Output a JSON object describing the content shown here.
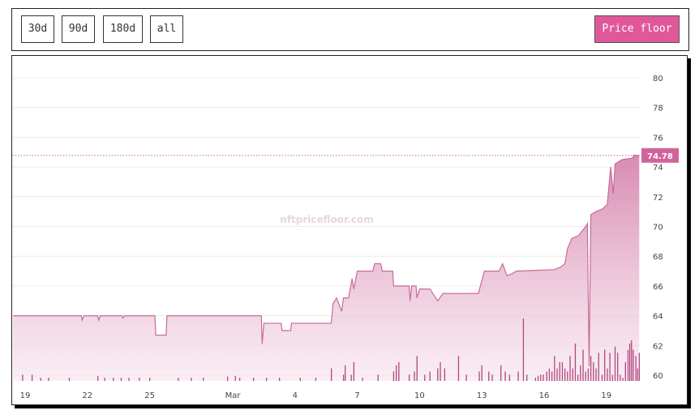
{
  "toolbar": {
    "ranges": [
      {
        "label": "30d",
        "active": true
      },
      {
        "label": "90d",
        "active": false
      },
      {
        "label": "180d",
        "active": false
      },
      {
        "label": "all",
        "active": false
      }
    ],
    "metric_button": "Price floor"
  },
  "colors": {
    "accent": "#e0589a",
    "line": "#c76b9a",
    "volume": "#b0487f",
    "label_bg": "#d0649a"
  },
  "chart_data": {
    "type": "area",
    "watermark": "nftpricefloor.com",
    "ylim": [
      60,
      80
    ],
    "yticks": [
      "60",
      "62",
      "64",
      "66",
      "68",
      "70",
      "72",
      "74",
      "76",
      "78",
      "80"
    ],
    "xticks": [
      {
        "date": "02-19 00:00",
        "label": "19"
      },
      {
        "date": "02-22 00:00",
        "label": "22"
      },
      {
        "date": "02-25 00:00",
        "label": "25"
      },
      {
        "date": "03-01 00:00",
        "label": "Mar"
      },
      {
        "date": "03-04 00:00",
        "label": "4"
      },
      {
        "date": "03-07 00:00",
        "label": "7"
      },
      {
        "date": "03-10 00:00",
        "label": "10"
      },
      {
        "date": "03-13 00:00",
        "label": "13"
      },
      {
        "date": "03-16 00:00",
        "label": "16"
      },
      {
        "date": "03-19 00:00",
        "label": "19"
      }
    ],
    "grid": true,
    "last_value_label": "74.78",
    "last_value": 74.78,
    "price": [
      [
        "02-18 10:00",
        64.0
      ],
      [
        "02-21 17:00",
        64.0
      ],
      [
        "02-21 18:00",
        63.7
      ],
      [
        "02-21 20:00",
        64.0
      ],
      [
        "02-22 12:00",
        64.0
      ],
      [
        "02-22 13:00",
        63.7
      ],
      [
        "02-22 15:00",
        64.0
      ],
      [
        "02-23 16:00",
        64.0
      ],
      [
        "02-23 17:00",
        63.85
      ],
      [
        "02-23 19:00",
        64.0
      ],
      [
        "02-25 06:00",
        64.0
      ],
      [
        "02-25 07:00",
        62.7
      ],
      [
        "02-25 19:00",
        62.7
      ],
      [
        "02-25 20:00",
        64.0
      ],
      [
        "03-02 09:00",
        64.0
      ],
      [
        "03-02 10:00",
        62.1
      ],
      [
        "03-02 12:00",
        63.5
      ],
      [
        "03-03 08:00",
        63.5
      ],
      [
        "03-03 09:00",
        63.0
      ],
      [
        "03-03 19:00",
        63.0
      ],
      [
        "03-03 20:00",
        63.5
      ],
      [
        "03-05 18:00",
        63.5
      ],
      [
        "03-05 20:00",
        64.8
      ],
      [
        "03-06 00:00",
        65.2
      ],
      [
        "03-06 06:00",
        64.3
      ],
      [
        "03-06 08:00",
        65.2
      ],
      [
        "03-06 14:00",
        65.2
      ],
      [
        "03-06 18:00",
        66.5
      ],
      [
        "03-06 20:00",
        65.8
      ],
      [
        "03-07 00:00",
        67.0
      ],
      [
        "03-07 18:00",
        67.0
      ],
      [
        "03-07 20:00",
        67.5
      ],
      [
        "03-08 03:00",
        67.5
      ],
      [
        "03-08 05:00",
        67.0
      ],
      [
        "03-08 17:00",
        67.0
      ],
      [
        "03-08 18:00",
        66.0
      ],
      [
        "03-09 12:00",
        66.0
      ],
      [
        "03-09 13:00",
        65.0
      ],
      [
        "03-09 15:00",
        66.0
      ],
      [
        "03-09 20:00",
        66.0
      ],
      [
        "03-09 21:00",
        65.2
      ],
      [
        "03-10 00:00",
        65.8
      ],
      [
        "03-10 12:00",
        65.8
      ],
      [
        "03-10 21:00",
        65.0
      ],
      [
        "03-11 03:00",
        65.5
      ],
      [
        "03-12 20:00",
        65.5
      ],
      [
        "03-13 03:00",
        67.0
      ],
      [
        "03-13 20:00",
        67.0
      ],
      [
        "03-14 00:00",
        67.5
      ],
      [
        "03-14 05:00",
        66.7
      ],
      [
        "03-14 10:00",
        66.8
      ],
      [
        "03-14 16:00",
        67.0
      ],
      [
        "03-16 12:00",
        67.1
      ],
      [
        "03-16 20:00",
        67.3
      ],
      [
        "03-17 00:00",
        67.5
      ],
      [
        "03-17 03:00",
        68.5
      ],
      [
        "03-17 08:00",
        69.2
      ],
      [
        "03-17 16:00",
        69.4
      ],
      [
        "03-18 00:00",
        70.0
      ],
      [
        "03-18 02:00",
        70.2
      ],
      [
        "03-18 04:00",
        60.6
      ],
      [
        "03-18 06:00",
        70.8
      ],
      [
        "03-18 12:00",
        71.0
      ],
      [
        "03-18 20:00",
        71.2
      ],
      [
        "03-19 01:00",
        71.5
      ],
      [
        "03-19 05:00",
        74.0
      ],
      [
        "03-19 08:00",
        72.2
      ],
      [
        "03-19 10:00",
        74.2
      ],
      [
        "03-19 18:00",
        74.5
      ],
      [
        "03-20 06:00",
        74.6
      ],
      [
        "03-20 08:00",
        74.8
      ],
      [
        "03-20 14:00",
        74.78
      ]
    ],
    "volume": [
      [
        "02-18 21:00",
        1
      ],
      [
        "02-19 08:00",
        1
      ],
      [
        "02-19 18:00",
        0.5
      ],
      [
        "02-20 03:00",
        0.5
      ],
      [
        "02-21 03:00",
        0.5
      ],
      [
        "02-22 12:00",
        0.8
      ],
      [
        "02-22 20:00",
        0.5
      ],
      [
        "02-23 06:00",
        0.5
      ],
      [
        "02-23 15:00",
        0.5
      ],
      [
        "02-24 00:00",
        0.5
      ],
      [
        "02-24 12:00",
        0.5
      ],
      [
        "02-25 00:00",
        0.5
      ],
      [
        "02-26 09:00",
        0.5
      ],
      [
        "02-27 00:00",
        0.5
      ],
      [
        "02-27 14:00",
        0.5
      ],
      [
        "02-28 18:00",
        0.7
      ],
      [
        "03-01 03:00",
        0.8
      ],
      [
        "03-01 08:00",
        0.5
      ],
      [
        "03-02 00:00",
        0.5
      ],
      [
        "03-02 15:00",
        0.5
      ],
      [
        "03-03 06:00",
        0.5
      ],
      [
        "03-04 06:00",
        0.5
      ],
      [
        "03-05 00:00",
        0.5
      ],
      [
        "03-05 18:00",
        2
      ],
      [
        "03-06 08:00",
        1
      ],
      [
        "03-06 10:00",
        2.5
      ],
      [
        "03-06 17:00",
        1
      ],
      [
        "03-06 20:00",
        3
      ],
      [
        "03-07 06:00",
        0.5
      ],
      [
        "03-08 00:00",
        1
      ],
      [
        "03-08 18:00",
        1.5
      ],
      [
        "03-08 21:00",
        2.5
      ],
      [
        "03-09 00:00",
        3
      ],
      [
        "03-09 12:00",
        1
      ],
      [
        "03-09 18:00",
        1.5
      ],
      [
        "03-09 21:00",
        4
      ],
      [
        "03-10 06:00",
        1
      ],
      [
        "03-10 12:00",
        1.5
      ],
      [
        "03-10 21:00",
        2
      ],
      [
        "03-11 00:00",
        3
      ],
      [
        "03-11 05:00",
        2
      ],
      [
        "03-11 21:00",
        4
      ],
      [
        "03-12 06:00",
        1
      ],
      [
        "03-12 21:00",
        1.5
      ],
      [
        "03-13 00:00",
        2.5
      ],
      [
        "03-13 08:00",
        1.5
      ],
      [
        "03-13 12:00",
        1
      ],
      [
        "03-13 22:00",
        2.5
      ],
      [
        "03-14 03:00",
        1.5
      ],
      [
        "03-14 08:00",
        1
      ],
      [
        "03-14 18:00",
        1.5
      ],
      [
        "03-15 00:00",
        10
      ],
      [
        "03-15 04:00",
        1
      ],
      [
        "03-15 14:00",
        0.5
      ],
      [
        "03-15 17:00",
        0.8
      ],
      [
        "03-15 20:00",
        1
      ],
      [
        "03-15 23:00",
        1
      ],
      [
        "03-16 03:00",
        1.5
      ],
      [
        "03-16 06:00",
        2
      ],
      [
        "03-16 09:00",
        1.5
      ],
      [
        "03-16 12:00",
        4
      ],
      [
        "03-16 15:00",
        2
      ],
      [
        "03-16 18:00",
        3
      ],
      [
        "03-16 21:00",
        3
      ],
      [
        "03-17 00:00",
        2
      ],
      [
        "03-17 03:00",
        1.5
      ],
      [
        "03-17 06:00",
        4
      ],
      [
        "03-17 09:00",
        2
      ],
      [
        "03-17 12:00",
        6
      ],
      [
        "03-17 15:00",
        1
      ],
      [
        "03-17 18:00",
        2.5
      ],
      [
        "03-17 21:00",
        5
      ],
      [
        "03-18 00:00",
        1.5
      ],
      [
        "03-18 03:00",
        2
      ],
      [
        "03-18 06:00",
        4
      ],
      [
        "03-18 09:00",
        3
      ],
      [
        "03-18 12:00",
        2
      ],
      [
        "03-18 15:00",
        4.5
      ],
      [
        "03-18 19:00",
        1
      ],
      [
        "03-18 22:00",
        5
      ],
      [
        "03-19 01:00",
        2
      ],
      [
        "03-19 04:00",
        4.5
      ],
      [
        "03-19 07:00",
        1
      ],
      [
        "03-19 10:00",
        5.5
      ],
      [
        "03-19 13:00",
        4.5
      ],
      [
        "03-19 16:00",
        1
      ],
      [
        "03-19 19:00",
        0.5
      ],
      [
        "03-19 22:00",
        3
      ],
      [
        "03-20 01:00",
        5
      ],
      [
        "03-20 03:00",
        6
      ],
      [
        "03-20 05:00",
        6.5
      ],
      [
        "03-20 07:00",
        5
      ],
      [
        "03-20 10:00",
        4
      ],
      [
        "03-20 12:00",
        2
      ],
      [
        "03-20 14:00",
        4.5
      ]
    ]
  }
}
